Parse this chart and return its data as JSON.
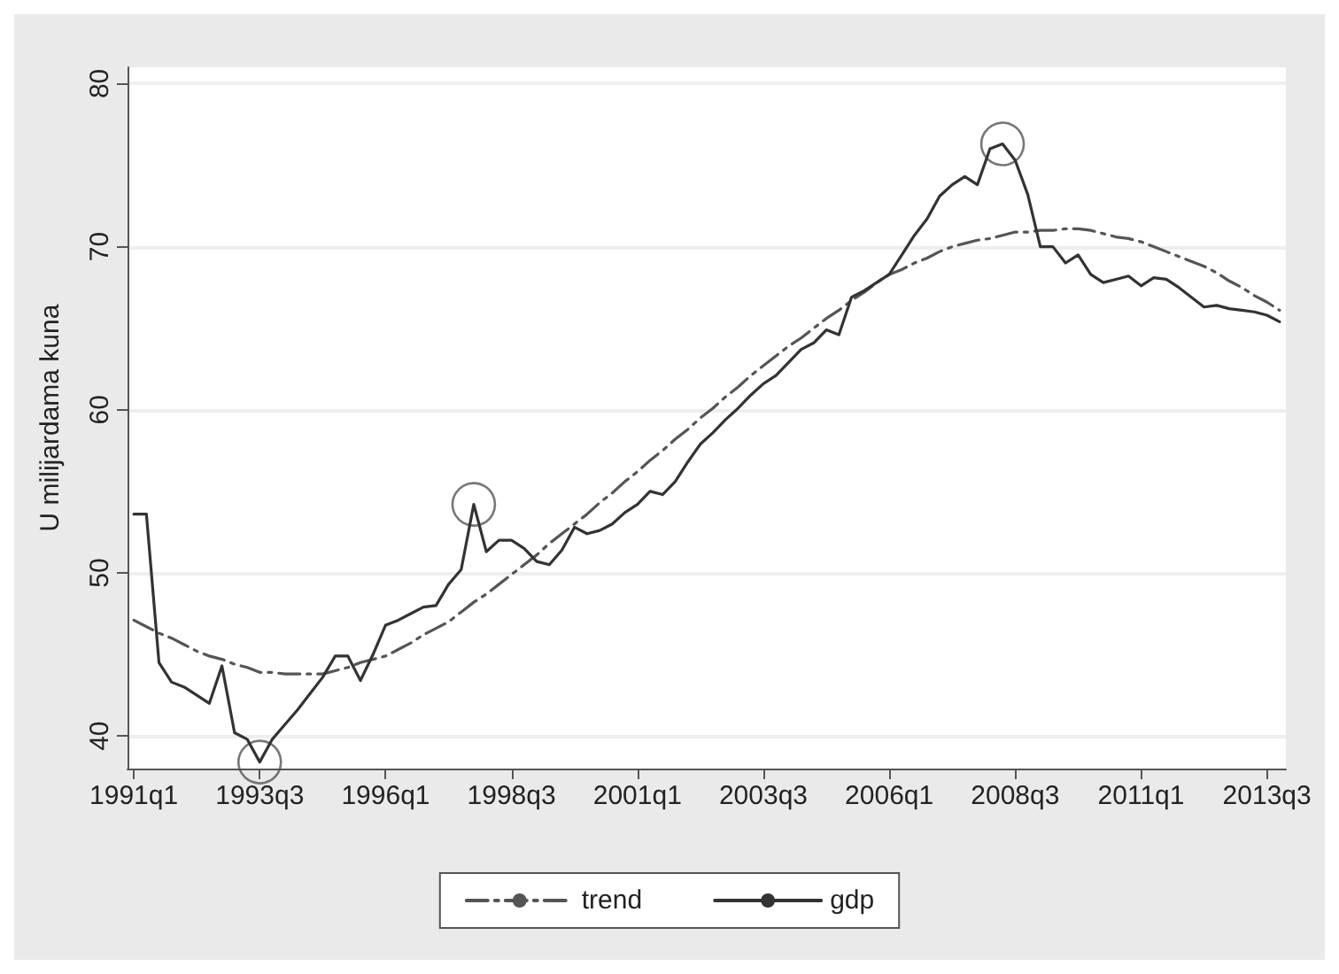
{
  "chart_data": {
    "type": "line",
    "ylabel": "U milijardama kuna",
    "categories": [
      "1991q1",
      null,
      null,
      null,
      null,
      null,
      null,
      null,
      null,
      null,
      "1993q3",
      null,
      null,
      null,
      null,
      null,
      null,
      null,
      null,
      null,
      "1996q1",
      null,
      null,
      null,
      null,
      null,
      null,
      null,
      null,
      null,
      "1998q3",
      null,
      null,
      null,
      null,
      null,
      null,
      null,
      null,
      null,
      "2001q1",
      null,
      null,
      null,
      null,
      null,
      null,
      null,
      null,
      null,
      "2003q3",
      null,
      null,
      null,
      null,
      null,
      null,
      null,
      null,
      null,
      "2006q1",
      null,
      null,
      null,
      null,
      null,
      null,
      null,
      null,
      null,
      "2008q3",
      null,
      null,
      null,
      null,
      null,
      null,
      null,
      null,
      null,
      "2011q1",
      null,
      null,
      null,
      null,
      null,
      null,
      null,
      null,
      null,
      "2013q3",
      null
    ],
    "ylim": [
      38,
      81
    ],
    "yticks": [
      40,
      50,
      60,
      70,
      80
    ],
    "grid": "y",
    "legend": "bottom",
    "series": [
      {
        "name": "trend",
        "color": "#555555",
        "line_style": "dashed",
        "marker": "none",
        "values": [
          47.1,
          46.7,
          46.3,
          46.0,
          45.6,
          45.2,
          44.9,
          44.7,
          44.4,
          44.2,
          43.9,
          43.9,
          43.8,
          43.8,
          43.8,
          43.8,
          44.0,
          44.2,
          44.5,
          44.7,
          44.9,
          45.3,
          45.7,
          46.2,
          46.6,
          47.0,
          47.6,
          48.2,
          48.7,
          49.3,
          49.9,
          50.5,
          51.1,
          51.8,
          52.4,
          53.0,
          53.6,
          54.3,
          54.9,
          55.6,
          56.2,
          56.9,
          57.5,
          58.2,
          58.8,
          59.5,
          60.1,
          60.8,
          61.4,
          62.1,
          62.7,
          63.3,
          63.9,
          64.4,
          65.0,
          65.6,
          66.1,
          66.7,
          67.2,
          67.8,
          68.3,
          68.6,
          69.0,
          69.3,
          69.7,
          70.0,
          70.2,
          70.4,
          70.5,
          70.7,
          70.9,
          70.9,
          71.0,
          71.0,
          71.1,
          71.1,
          71.0,
          70.8,
          70.6,
          70.5,
          70.3,
          70.0,
          69.7,
          69.4,
          69.1,
          68.8,
          68.4,
          67.9,
          67.5,
          67.0,
          66.6,
          66.1
        ]
      },
      {
        "name": "gdp",
        "color": "#333333",
        "line_style": "solid",
        "marker": "none",
        "values": [
          53.6,
          53.6,
          44.5,
          43.3,
          43.0,
          42.5,
          42.0,
          44.3,
          40.2,
          39.8,
          38.4,
          39.8,
          40.7,
          41.6,
          42.6,
          43.6,
          44.9,
          44.9,
          43.4,
          45.0,
          46.8,
          47.1,
          47.5,
          47.9,
          48.0,
          49.3,
          50.2,
          54.2,
          51.3,
          52.0,
          52.0,
          51.5,
          50.7,
          50.5,
          51.4,
          52.8,
          52.4,
          52.6,
          53.0,
          53.7,
          54.2,
          55.0,
          54.8,
          55.6,
          56.8,
          57.9,
          58.6,
          59.4,
          60.1,
          60.9,
          61.6,
          62.1,
          62.9,
          63.7,
          64.1,
          64.9,
          64.6,
          66.9,
          67.3,
          67.8,
          68.3,
          69.5,
          70.7,
          71.7,
          73.1,
          73.8,
          74.3,
          73.8,
          76.0,
          76.3,
          75.3,
          73.2,
          70.0,
          70.0,
          69.0,
          69.5,
          68.3,
          67.8,
          68.0,
          68.2,
          67.6,
          68.1,
          68.0,
          67.5,
          66.9,
          66.3,
          66.4,
          66.2,
          66.1,
          66.0,
          65.8,
          65.4
        ]
      },
      {
        "type": "scatter",
        "color": "#555555",
        "marker": "circle",
        "values": [
          null,
          null,
          null,
          null,
          null,
          null,
          null,
          null,
          null,
          null,
          38.4,
          null,
          null,
          null,
          null,
          null,
          null,
          null,
          null,
          null,
          null,
          null,
          null,
          null,
          null,
          null,
          null,
          54.2,
          null,
          null,
          null,
          null,
          null,
          null,
          null,
          null,
          null,
          null,
          null,
          null,
          null,
          null,
          null,
          null,
          null,
          null,
          null,
          null,
          null,
          null,
          null,
          null,
          null,
          null,
          null,
          null,
          null,
          null,
          null,
          null,
          null,
          null,
          null,
          null,
          null,
          null,
          null,
          null,
          null,
          76.3,
          null,
          null,
          null,
          null,
          null,
          null,
          null,
          null,
          null,
          null,
          null,
          null,
          null,
          null,
          null,
          null,
          null,
          null,
          null,
          null,
          null,
          null
        ]
      }
    ]
  }
}
